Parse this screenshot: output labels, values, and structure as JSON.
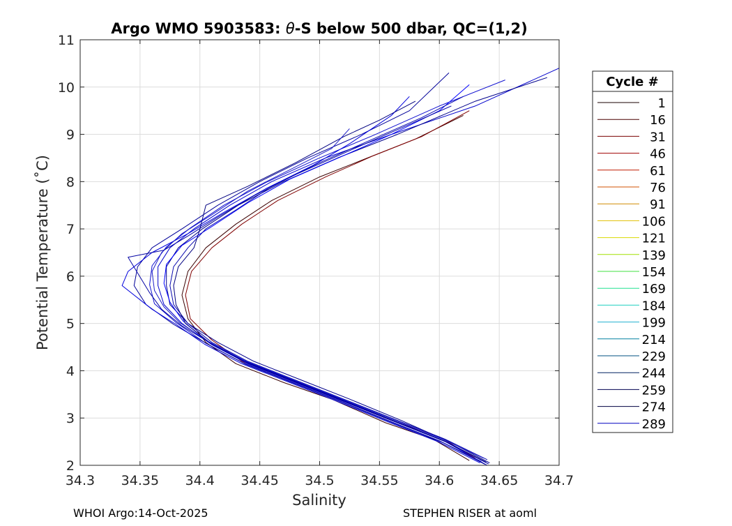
{
  "chart_data": {
    "type": "line",
    "title_prefix": "Argo WMO 5903583: ",
    "title_symbol": "θ",
    "title_suffix": "-S below 500 dbar,  QC=(1,2)",
    "xlabel": "Salinity",
    "ylabel": "Potential Temperature (˚C)",
    "xlim": [
      34.3,
      34.7
    ],
    "ylim": [
      2,
      11
    ],
    "xticks": [
      "34.3",
      "34.35",
      "34.4",
      "34.45",
      "34.5",
      "34.55",
      "34.6",
      "34.65",
      "34.7"
    ],
    "yticks": [
      "2",
      "3",
      "4",
      "5",
      "6",
      "7",
      "8",
      "9",
      "10",
      "11"
    ],
    "grid": true,
    "legend": {
      "title": "Cycle #",
      "placement": "outside-right",
      "entries": [
        {
          "name": "1",
          "color": "#1a0000"
        },
        {
          "name": "16",
          "color": "#4a0000"
        },
        {
          "name": "31",
          "color": "#7a0000"
        },
        {
          "name": "46",
          "color": "#a00000"
        },
        {
          "name": "61",
          "color": "#c01a00"
        },
        {
          "name": "76",
          "color": "#d05000"
        },
        {
          "name": "91",
          "color": "#d08a00"
        },
        {
          "name": "106",
          "color": "#e0c000"
        },
        {
          "name": "121",
          "color": "#d8d800"
        },
        {
          "name": "139",
          "color": "#a0e000"
        },
        {
          "name": "154",
          "color": "#40e040"
        },
        {
          "name": "169",
          "color": "#20e090"
        },
        {
          "name": "184",
          "color": "#20d0c0"
        },
        {
          "name": "199",
          "color": "#20b0d0"
        },
        {
          "name": "214",
          "color": "#0080a0"
        },
        {
          "name": "229",
          "color": "#005080"
        },
        {
          "name": "244",
          "color": "#002060"
        },
        {
          "name": "259",
          "color": "#000050"
        },
        {
          "name": "274",
          "color": "#000040"
        },
        {
          "name": "289",
          "color": "#0000c0"
        }
      ]
    },
    "series": [
      {
        "color": "#3a0000",
        "points": [
          [
            34.625,
            2.1
          ],
          [
            34.595,
            2.55
          ],
          [
            34.555,
            2.9
          ],
          [
            34.51,
            3.4
          ],
          [
            34.47,
            3.75
          ],
          [
            34.43,
            4.15
          ],
          [
            34.405,
            4.6
          ],
          [
            34.39,
            5.1
          ],
          [
            34.385,
            5.6
          ],
          [
            34.39,
            6.1
          ],
          [
            34.405,
            6.6
          ],
          [
            34.43,
            7.1
          ],
          [
            34.46,
            7.6
          ],
          [
            34.5,
            8.1
          ],
          [
            34.54,
            8.5
          ],
          [
            34.58,
            8.9
          ],
          [
            34.62,
            9.4
          ]
        ]
      },
      {
        "color": "#800000",
        "points": [
          [
            34.63,
            2.15
          ],
          [
            34.6,
            2.6
          ],
          [
            34.56,
            2.95
          ],
          [
            34.515,
            3.4
          ],
          [
            34.475,
            3.8
          ],
          [
            34.435,
            4.2
          ],
          [
            34.41,
            4.65
          ],
          [
            34.392,
            5.1
          ],
          [
            34.388,
            5.6
          ],
          [
            34.393,
            6.1
          ],
          [
            34.41,
            6.6
          ],
          [
            34.435,
            7.1
          ],
          [
            34.465,
            7.6
          ],
          [
            34.505,
            8.1
          ],
          [
            34.545,
            8.55
          ],
          [
            34.585,
            8.95
          ],
          [
            34.625,
            9.5
          ]
        ]
      },
      {
        "color": "#0000cc",
        "points": [
          [
            34.64,
            2.0
          ],
          [
            34.605,
            2.5
          ],
          [
            34.565,
            2.9
          ],
          [
            34.52,
            3.35
          ],
          [
            34.48,
            3.75
          ],
          [
            34.44,
            4.15
          ],
          [
            34.41,
            4.55
          ],
          [
            34.385,
            5.0
          ],
          [
            34.37,
            5.4
          ],
          [
            34.365,
            5.8
          ],
          [
            34.365,
            6.2
          ],
          [
            34.375,
            6.6
          ],
          [
            34.395,
            7.0
          ],
          [
            34.425,
            7.5
          ],
          [
            34.46,
            8.0
          ],
          [
            34.505,
            8.5
          ],
          [
            34.56,
            9.0
          ],
          [
            34.63,
            9.6
          ],
          [
            34.7,
            10.4
          ]
        ]
      },
      {
        "color": "#00008b",
        "points": [
          [
            34.642,
            2.05
          ],
          [
            34.608,
            2.5
          ],
          [
            34.568,
            2.95
          ],
          [
            34.525,
            3.4
          ],
          [
            34.485,
            3.8
          ],
          [
            34.445,
            4.2
          ],
          [
            34.415,
            4.6
          ],
          [
            34.39,
            5.0
          ],
          [
            34.375,
            5.4
          ],
          [
            34.372,
            5.8
          ],
          [
            34.372,
            6.2
          ],
          [
            34.382,
            6.6
          ],
          [
            34.402,
            7.0
          ],
          [
            34.432,
            7.5
          ],
          [
            34.47,
            8.0
          ],
          [
            34.515,
            8.5
          ],
          [
            34.565,
            9.0
          ],
          [
            34.63,
            9.7
          ],
          [
            34.69,
            10.2
          ]
        ]
      },
      {
        "color": "#1010d0",
        "points": [
          [
            34.635,
            2.08
          ],
          [
            34.6,
            2.52
          ],
          [
            34.56,
            2.92
          ],
          [
            34.515,
            3.38
          ],
          [
            34.475,
            3.78
          ],
          [
            34.435,
            4.18
          ],
          [
            34.405,
            4.58
          ],
          [
            34.38,
            5.02
          ],
          [
            34.362,
            5.42
          ],
          [
            34.358,
            5.82
          ],
          [
            34.36,
            6.22
          ],
          [
            34.372,
            6.62
          ],
          [
            34.392,
            7.02
          ],
          [
            34.42,
            7.5
          ],
          [
            34.455,
            7.98
          ],
          [
            34.498,
            8.48
          ],
          [
            34.545,
            8.98
          ],
          [
            34.6,
            9.6
          ],
          [
            34.655,
            10.15
          ]
        ]
      },
      {
        "color": "#000099",
        "points": [
          [
            34.638,
            2.02
          ],
          [
            34.603,
            2.48
          ],
          [
            34.563,
            2.88
          ],
          [
            34.518,
            3.34
          ],
          [
            34.478,
            3.74
          ],
          [
            34.438,
            4.14
          ],
          [
            34.408,
            4.54
          ],
          [
            34.378,
            4.98
          ],
          [
            34.355,
            5.4
          ],
          [
            34.345,
            5.8
          ],
          [
            34.348,
            6.2
          ],
          [
            34.36,
            6.6
          ],
          [
            34.385,
            7.0
          ],
          [
            34.415,
            7.5
          ],
          [
            34.45,
            8.0
          ],
          [
            34.49,
            8.5
          ],
          [
            34.535,
            9.0
          ],
          [
            34.575,
            9.5
          ],
          [
            34.608,
            10.3
          ]
        ]
      },
      {
        "color": "#0000ff",
        "points": [
          [
            34.636,
            2.1
          ],
          [
            34.601,
            2.55
          ],
          [
            34.561,
            2.95
          ],
          [
            34.516,
            3.42
          ],
          [
            34.476,
            3.82
          ],
          [
            34.436,
            4.22
          ],
          [
            34.406,
            4.62
          ],
          [
            34.386,
            5.05
          ],
          [
            34.375,
            5.45
          ],
          [
            34.37,
            5.85
          ],
          [
            34.372,
            6.25
          ],
          [
            34.385,
            6.65
          ],
          [
            34.41,
            7.05
          ],
          [
            34.44,
            7.55
          ],
          [
            34.475,
            8.05
          ],
          [
            34.52,
            8.55
          ],
          [
            34.56,
            9.0
          ],
          [
            34.6,
            9.5
          ],
          [
            34.625,
            10.05
          ]
        ]
      },
      {
        "color": "#0a0ab0",
        "points": [
          [
            34.64,
            2.12
          ],
          [
            34.605,
            2.55
          ],
          [
            34.565,
            2.95
          ],
          [
            34.52,
            3.4
          ],
          [
            34.48,
            3.8
          ],
          [
            34.44,
            4.2
          ],
          [
            34.41,
            4.6
          ],
          [
            34.39,
            5.0
          ],
          [
            34.378,
            5.4
          ],
          [
            34.375,
            5.8
          ],
          [
            34.378,
            6.2
          ],
          [
            34.39,
            6.6
          ],
          [
            34.405,
            7.0
          ],
          [
            34.43,
            7.4
          ],
          [
            34.46,
            7.9
          ],
          [
            34.5,
            8.4
          ],
          [
            34.54,
            8.85
          ],
          [
            34.585,
            9.35
          ],
          [
            34.62,
            9.8
          ]
        ]
      },
      {
        "color": "#0000dd",
        "points": [
          [
            34.634,
            2.05
          ],
          [
            34.599,
            2.5
          ],
          [
            34.559,
            2.9
          ],
          [
            34.514,
            3.36
          ],
          [
            34.474,
            3.76
          ],
          [
            34.434,
            4.16
          ],
          [
            34.404,
            4.56
          ],
          [
            34.38,
            4.98
          ],
          [
            34.36,
            5.3
          ],
          [
            34.335,
            5.8
          ],
          [
            34.34,
            6.1
          ],
          [
            34.36,
            6.5
          ],
          [
            34.39,
            6.9
          ],
          [
            34.42,
            7.35
          ],
          [
            34.455,
            7.85
          ],
          [
            34.495,
            8.35
          ],
          [
            34.525,
            8.8
          ],
          [
            34.56,
            9.4
          ],
          [
            34.575,
            9.8
          ]
        ]
      },
      {
        "color": "#000080",
        "points": [
          [
            34.639,
            2.07
          ],
          [
            34.604,
            2.52
          ],
          [
            34.564,
            2.92
          ],
          [
            34.519,
            3.38
          ],
          [
            34.479,
            3.78
          ],
          [
            34.439,
            4.18
          ],
          [
            34.409,
            4.58
          ],
          [
            34.388,
            5.0
          ],
          [
            34.38,
            5.4
          ],
          [
            34.378,
            5.8
          ],
          [
            34.382,
            6.2
          ],
          [
            34.395,
            6.6
          ],
          [
            34.4,
            7.0
          ],
          [
            34.405,
            7.5
          ],
          [
            34.44,
            7.9
          ],
          [
            34.48,
            8.4
          ],
          [
            34.52,
            8.95
          ],
          [
            34.55,
            9.3
          ],
          [
            34.58,
            9.7
          ]
        ]
      },
      {
        "color": "#1e1ec8",
        "points": [
          [
            34.637,
            2.15
          ],
          [
            34.602,
            2.56
          ],
          [
            34.562,
            2.96
          ],
          [
            34.517,
            3.42
          ],
          [
            34.477,
            3.82
          ],
          [
            34.437,
            4.22
          ],
          [
            34.407,
            4.62
          ],
          [
            34.383,
            5.02
          ],
          [
            34.37,
            5.35
          ],
          [
            34.362,
            5.7
          ],
          [
            34.36,
            6.1
          ],
          [
            34.368,
            6.5
          ],
          [
            34.385,
            6.9
          ],
          [
            34.41,
            7.3
          ],
          [
            34.44,
            7.8
          ],
          [
            34.475,
            8.25
          ],
          [
            34.51,
            8.7
          ],
          [
            34.525,
            9.12
          ]
        ]
      },
      {
        "color": "#0505a5",
        "points": [
          [
            34.641,
            2.03
          ],
          [
            34.606,
            2.49
          ],
          [
            34.566,
            2.89
          ],
          [
            34.521,
            3.35
          ],
          [
            34.481,
            3.75
          ],
          [
            34.441,
            4.15
          ],
          [
            34.411,
            4.55
          ],
          [
            34.385,
            4.95
          ],
          [
            34.368,
            5.3
          ],
          [
            34.358,
            5.65
          ],
          [
            34.34,
            6.4
          ],
          [
            34.37,
            6.55
          ],
          [
            34.39,
            6.85
          ],
          [
            34.415,
            7.25
          ],
          [
            34.445,
            7.7
          ],
          [
            34.48,
            8.15
          ],
          [
            34.52,
            8.6
          ],
          [
            34.565,
            9.1
          ],
          [
            34.61,
            9.6
          ]
        ]
      }
    ]
  },
  "footer": {
    "left": "WHOI Argo:14-Oct-2025",
    "right": "STEPHEN RISER at aoml"
  }
}
